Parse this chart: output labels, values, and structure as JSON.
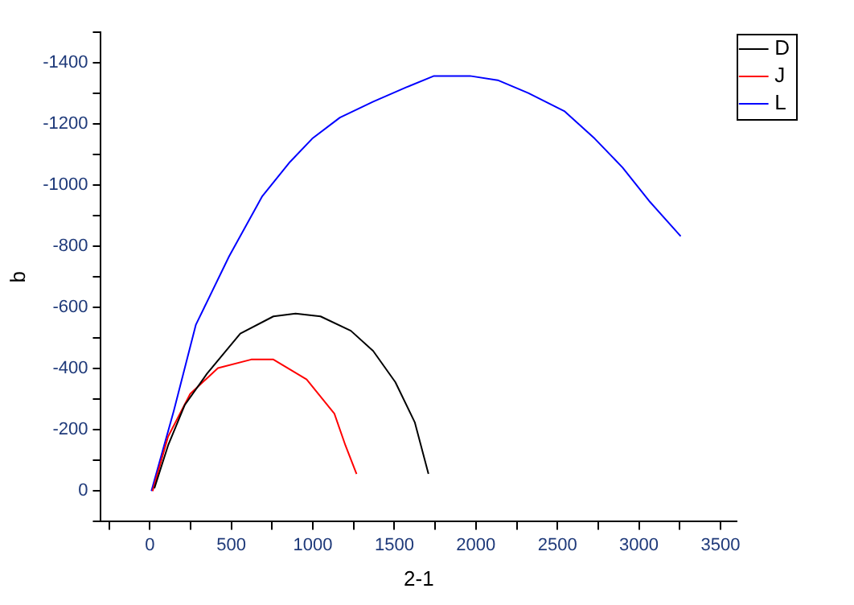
{
  "chart_data": {
    "type": "line",
    "xlabel": "2-1",
    "ylabel": "b",
    "xlim": [
      -300,
      3600
    ],
    "ylim": [
      100,
      -1500
    ],
    "xticks": [
      {
        "value": -250,
        "label": null
      },
      0,
      {
        "value": 250,
        "label": null
      },
      500,
      {
        "value": 750,
        "label": null
      },
      1000,
      {
        "value": 1250,
        "label": null
      },
      1500,
      {
        "value": 1750,
        "label": null
      },
      2000,
      {
        "value": 2250,
        "label": null
      },
      2500,
      {
        "value": 2750,
        "label": null
      },
      3000,
      {
        "value": 3250,
        "label": null
      },
      3500
    ],
    "yticks": [
      {
        "value": 100,
        "label": null
      },
      0,
      {
        "value": -100,
        "label": null
      },
      -200,
      {
        "value": -300,
        "label": null
      },
      -400,
      {
        "value": -500,
        "label": null
      },
      -600,
      {
        "value": -700,
        "label": null
      },
      -800,
      {
        "value": -900,
        "label": null
      },
      -1000,
      {
        "value": -1100,
        "label": null
      },
      -1200,
      {
        "value": -1300,
        "label": null
      },
      -1400,
      {
        "value": -1500,
        "label": null
      }
    ],
    "grid": false,
    "legend": "top right",
    "marker": "none",
    "line_style": "solid",
    "series": [
      {
        "name": "D",
        "color": "#000000",
        "x": [
          28,
          112,
          214,
          351,
          555,
          758,
          894,
          1047,
          1233,
          1370,
          1506,
          1625,
          1709
        ],
        "values": [
          -9,
          -149,
          -281,
          -384,
          -515,
          -571,
          -580,
          -571,
          -524,
          -458,
          -356,
          -225,
          -56
        ]
      },
      {
        "name": "J",
        "color": "#ff0000",
        "x": [
          17,
          112,
          248,
          418,
          622,
          758,
          962,
          1132,
          1200,
          1268
        ],
        "values": [
          0,
          -178,
          -318,
          -402,
          -430,
          -430,
          -365,
          -253,
          -149,
          -56
        ]
      },
      {
        "name": "L",
        "color": "#0000ff",
        "x": [
          10,
          147,
          282,
          486,
          690,
          860,
          996,
          1166,
          1370,
          1574,
          1743,
          1964,
          2134,
          2321,
          2542,
          2729,
          2899,
          3068,
          3256
        ],
        "values": [
          0,
          -262,
          -543,
          -767,
          -964,
          -1076,
          -1152,
          -1221,
          -1273,
          -1320,
          -1357,
          -1357,
          -1343,
          -1301,
          -1242,
          -1152,
          -1058,
          -945,
          -833
        ]
      }
    ]
  }
}
